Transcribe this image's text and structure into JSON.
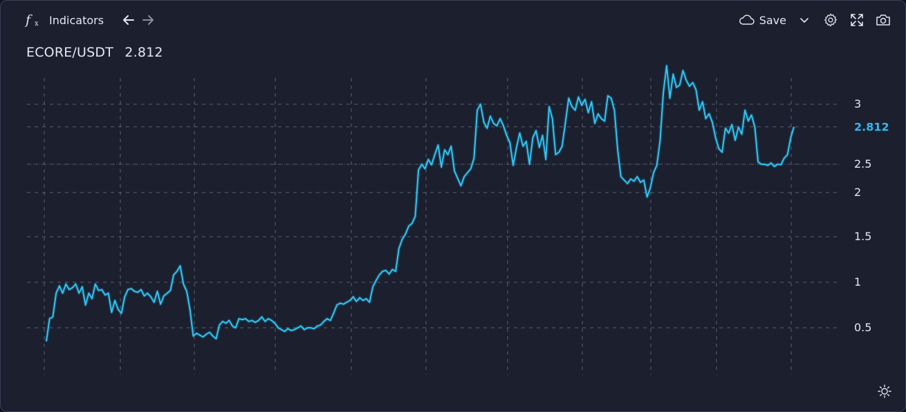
{
  "toolbar": {
    "indicators_label": "Indicators",
    "save_label": "Save"
  },
  "header": {
    "pair": "ECORE/USDT",
    "price": "2.812"
  },
  "colors": {
    "background": "#1b1f2e",
    "line": "#2ec5f5",
    "grid": "#5a6072",
    "text": "#e6e8ef",
    "price_label": "#36b7f0"
  },
  "icons": {
    "indicators": "fx-icon",
    "back": "arrow-left-icon",
    "forward": "arrow-right-icon",
    "save": "cloud-icon",
    "dropdown": "chevron-down-icon",
    "settings": "gear-icon",
    "fullscreen": "expand-icon",
    "screenshot": "camera-icon",
    "theme": "sun-icon"
  },
  "chart_data": {
    "type": "line",
    "series": [
      {
        "values": [
          0.35,
          0.6,
          0.62,
          0.88,
          0.96,
          0.88,
          0.98,
          0.92,
          0.94,
          0.98,
          0.88,
          0.95,
          0.75,
          0.88,
          0.82,
          0.98,
          0.91,
          0.92,
          0.86,
          0.88,
          0.67,
          0.8,
          0.7,
          0.66,
          0.84,
          0.92,
          0.93,
          0.9,
          0.89,
          0.92,
          0.85,
          0.88,
          0.84,
          0.78,
          0.9,
          0.76,
          0.85,
          0.88,
          0.91,
          1.08,
          1.12,
          1.18,
          0.98,
          0.9,
          0.7,
          0.41,
          0.44,
          0.42,
          0.4,
          0.43,
          0.45,
          0.41,
          0.38,
          0.53,
          0.57,
          0.55,
          0.58,
          0.52,
          0.5,
          0.6,
          0.59,
          0.6,
          0.57,
          0.58,
          0.56,
          0.58,
          0.62,
          0.57,
          0.6,
          0.58,
          0.55,
          0.5,
          0.48,
          0.46,
          0.49,
          0.47,
          0.48,
          0.5,
          0.52,
          0.48,
          0.5,
          0.5,
          0.49,
          0.52,
          0.53,
          0.57,
          0.6,
          0.58,
          0.66,
          0.75,
          0.77,
          0.76,
          0.78,
          0.8,
          0.84,
          0.79,
          0.83,
          0.8,
          0.82,
          0.78,
          0.95,
          1.02,
          1.08,
          1.12,
          1.13,
          1.09,
          1.14,
          1.12,
          1.37,
          1.47,
          1.53,
          1.62,
          1.65,
          1.73,
          2.4,
          2.5,
          2.42,
          2.54,
          2.49,
          2.58,
          2.66,
          2.45,
          2.62,
          2.58,
          2.65,
          2.38,
          2.25,
          2.12,
          2.28,
          2.35,
          2.42,
          2.55,
          2.95,
          3.0,
          2.85,
          2.8,
          2.9,
          2.84,
          2.82,
          2.88,
          2.82,
          2.74,
          2.68,
          2.48,
          2.64,
          2.76,
          2.65,
          2.69,
          2.5,
          2.72,
          2.78,
          2.64,
          2.74,
          2.54,
          2.98,
          2.88,
          2.58,
          2.6,
          2.65,
          2.85,
          3.05,
          2.98,
          2.95,
          3.06,
          2.99,
          3.04,
          2.93,
          3.02,
          2.84,
          2.92,
          2.88,
          2.86,
          3.07,
          3.05,
          2.95,
          2.62,
          2.28,
          2.22,
          2.16,
          2.24,
          2.2,
          2.28,
          2.18,
          2.22,
          1.95,
          2.08,
          2.35,
          2.48,
          2.7,
          3.1,
          3.32,
          3.05,
          3.25,
          3.14,
          3.16,
          3.28,
          3.2,
          3.15,
          3.18,
          3.12,
          2.95,
          3.02,
          2.88,
          2.92,
          2.85,
          2.72,
          2.63,
          2.6,
          2.8,
          2.76,
          2.83,
          2.7,
          2.81,
          2.75,
          2.95,
          2.86,
          2.91,
          2.81,
          2.52,
          2.5,
          2.5,
          2.48,
          2.51,
          2.46,
          2.5,
          2.49,
          2.55,
          2.58,
          2.72,
          2.812
        ]
      }
    ],
    "y_ticks": [
      3,
      2.5,
      2,
      1.5,
      1,
      0.5
    ],
    "last_value_label": "2.812",
    "grid": true,
    "grid_style": "dashed"
  }
}
